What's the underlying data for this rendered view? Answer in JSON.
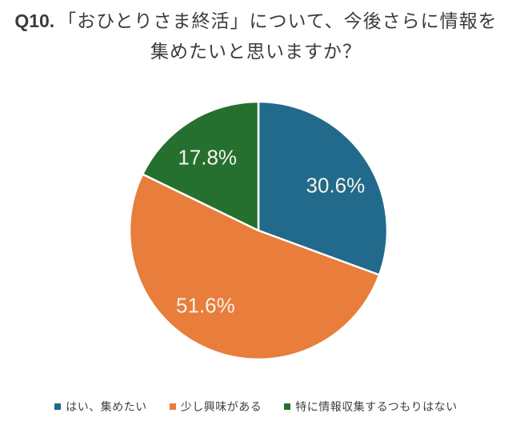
{
  "title": {
    "prefix": "Q10.",
    "line1": "「おひとりさま終活」について、今後さらに情報を",
    "line2": "集めたいと思いますか？"
  },
  "chart_data": {
    "type": "pie",
    "title": "Q10.「おひとりさま終活」について、今後さらに情報を集めたいと思いますか？",
    "categories": [
      "はい、集めたい",
      "少し興味がある",
      "特に情報収集するつもりはない"
    ],
    "values": [
      30.6,
      51.6,
      17.8
    ],
    "unit": "%",
    "data_labels": [
      "30.6%",
      "51.6%",
      "17.8%"
    ],
    "colors": [
      "#216a8c",
      "#e87d3c",
      "#25702e"
    ],
    "start_angle_deg": 0,
    "direction": "clockwise",
    "legend_position": "bottom",
    "data_label_color": "#f6f3ec",
    "slice_border_color": "#ffffff"
  },
  "legend": {
    "items": [
      {
        "label": "はい、集めたい",
        "color": "#216a8c"
      },
      {
        "label": "少し興味がある",
        "color": "#e87d3c"
      },
      {
        "label": "特に情報収集するつもりはない",
        "color": "#25702e"
      }
    ]
  }
}
